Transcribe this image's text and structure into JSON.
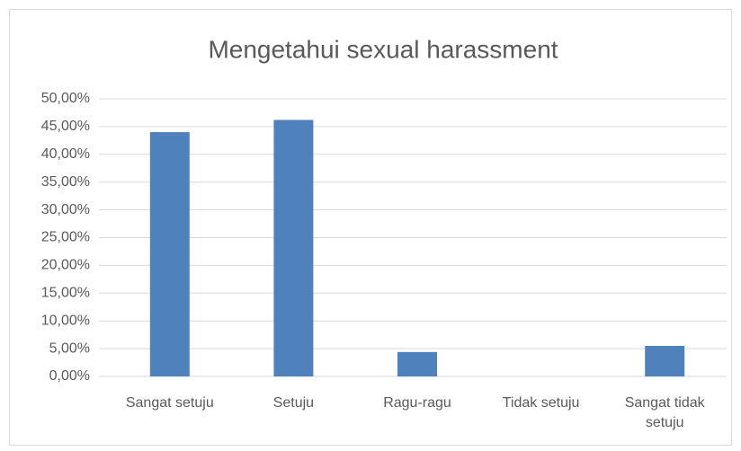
{
  "chart_data": {
    "type": "bar",
    "title": "Mengetahui sexual harassment",
    "categories": [
      "Sangat setuju",
      "Setuju",
      "Ragu-ragu",
      "Tidak setuju",
      "Sangat tidak setuju"
    ],
    "values": [
      44.0,
      46.2,
      4.4,
      0,
      5.5
    ],
    "color": "#4f81bd",
    "ylim": [
      0,
      50
    ],
    "yticks": [
      {
        "value": 0,
        "label": "0,00%"
      },
      {
        "value": 5,
        "label": "5,00%"
      },
      {
        "value": 10,
        "label": "10,00%"
      },
      {
        "value": 15,
        "label": "15,00%"
      },
      {
        "value": 20,
        "label": "20,00%"
      },
      {
        "value": 25,
        "label": "25,00%"
      },
      {
        "value": 30,
        "label": "30,00%"
      },
      {
        "value": 35,
        "label": "35,00%"
      },
      {
        "value": 40,
        "label": "40,00%"
      },
      {
        "value": 45,
        "label": "45,00%"
      },
      {
        "value": 50,
        "label": "50,00%"
      }
    ],
    "grid": true
  }
}
